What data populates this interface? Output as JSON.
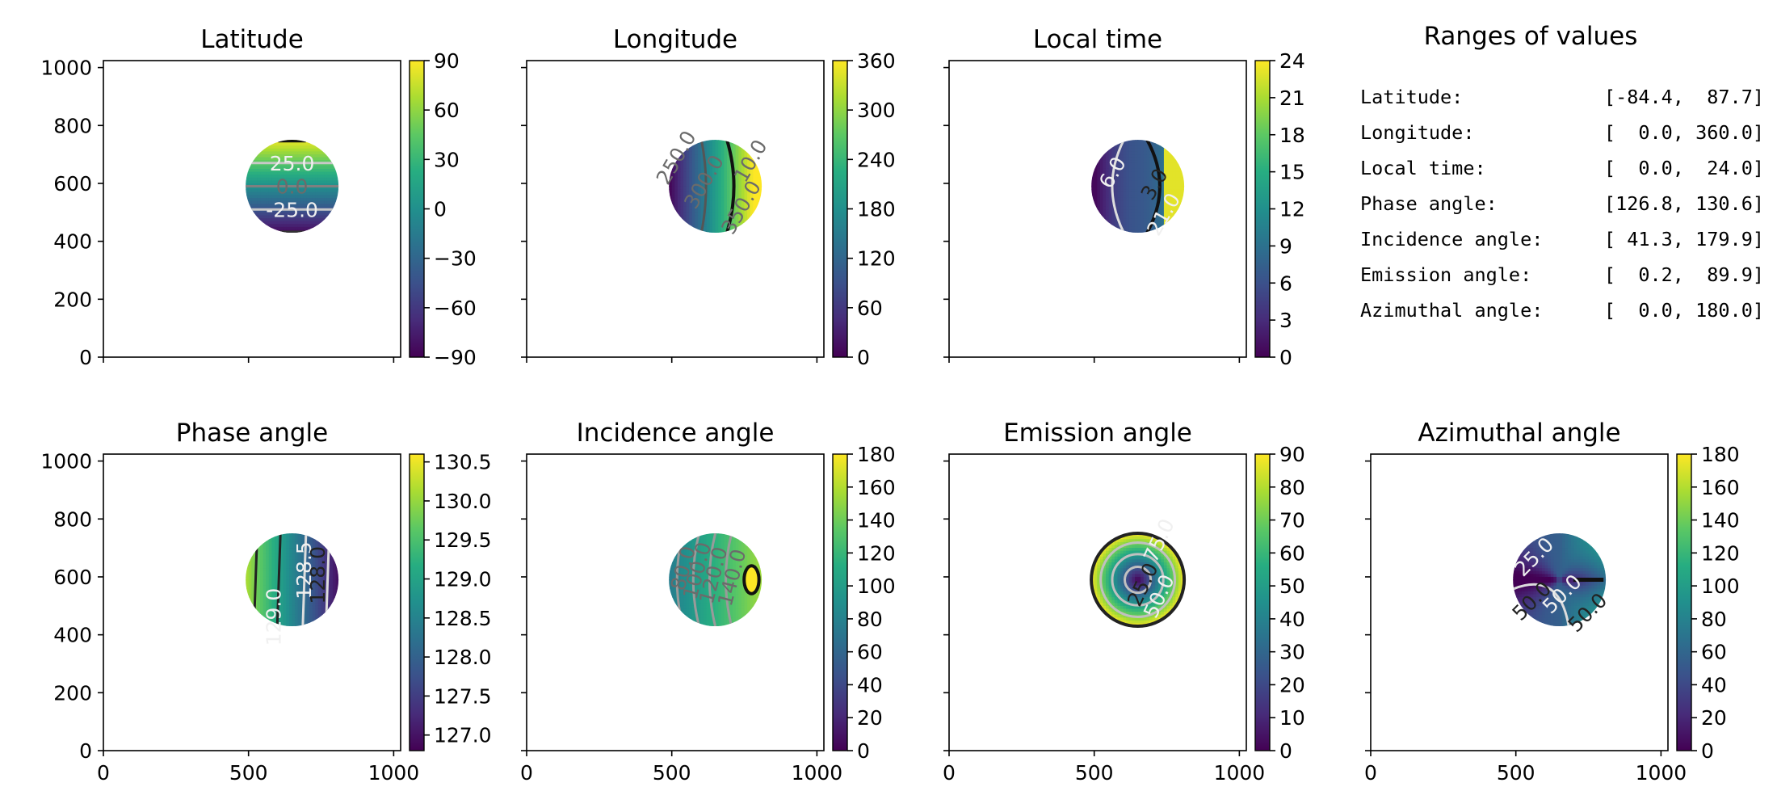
{
  "chart_data": [
    {
      "type": "heatmap",
      "title": "Latitude",
      "xlim": [
        0,
        1024
      ],
      "ylim": [
        0,
        1024
      ],
      "xticks": [],
      "yticks": [
        "0",
        "200",
        "400",
        "600",
        "800",
        "1000"
      ],
      "disk": {
        "cx": 650,
        "cy": 590,
        "r": 160
      },
      "field": "latitude",
      "colorbar": {
        "min": -90,
        "max": 90,
        "ticks": [
          "90",
          "60",
          "30",
          "0",
          "−30",
          "−60",
          "−90"
        ]
      },
      "contour_labels": [
        "25.0",
        "0.0",
        "-25.0"
      ]
    },
    {
      "type": "heatmap",
      "title": "Longitude",
      "xlim": [
        0,
        1024
      ],
      "ylim": [
        0,
        1024
      ],
      "xticks": [],
      "yticks": [],
      "disk": {
        "cx": 650,
        "cy": 590,
        "r": 160
      },
      "field": "longitude",
      "colorbar": {
        "min": 0,
        "max": 360,
        "ticks": [
          "360",
          "300",
          "240",
          "180",
          "120",
          "60",
          "0"
        ]
      },
      "contour_labels": [
        "250.0",
        "300.0",
        "350.0",
        "10.0"
      ]
    },
    {
      "type": "heatmap",
      "title": "Local time",
      "xlim": [
        0,
        1024
      ],
      "ylim": [
        0,
        1024
      ],
      "xticks": [],
      "yticks": [],
      "disk": {
        "cx": 650,
        "cy": 590,
        "r": 160
      },
      "field": "localtime",
      "colorbar": {
        "min": 0,
        "max": 24,
        "ticks": [
          "24",
          "21",
          "18",
          "15",
          "12",
          "9",
          "6",
          "3",
          "0"
        ]
      },
      "contour_labels": [
        "6.0",
        "3.0",
        "21.0"
      ]
    },
    {
      "type": "heatmap",
      "title": "Phase angle",
      "xlim": [
        0,
        1024
      ],
      "ylim": [
        0,
        1024
      ],
      "xticks": [
        "0",
        "500",
        "1000"
      ],
      "yticks": [
        "0",
        "200",
        "400",
        "600",
        "800",
        "1000"
      ],
      "disk": {
        "cx": 650,
        "cy": 590,
        "r": 160
      },
      "field": "phase",
      "colorbar": {
        "min": 126.8,
        "max": 130.6,
        "ticks": [
          "130.5",
          "130.0",
          "129.5",
          "129.0",
          "128.5",
          "128.0",
          "127.5",
          "127.0"
        ],
        "tick_values": [
          130.5,
          130.0,
          129.5,
          129.0,
          128.5,
          128.0,
          127.5,
          127.0
        ]
      },
      "contour_labels": [
        "128.5",
        "128.0",
        "129.0"
      ]
    },
    {
      "type": "heatmap",
      "title": "Incidence angle",
      "xlim": [
        0,
        1024
      ],
      "ylim": [
        0,
        1024
      ],
      "xticks": [
        "0",
        "500",
        "1000"
      ],
      "yticks": [],
      "disk": {
        "cx": 650,
        "cy": 590,
        "r": 160
      },
      "field": "incidence",
      "colorbar": {
        "min": 0,
        "max": 180,
        "ticks": [
          "180",
          "160",
          "140",
          "120",
          "100",
          "80",
          "60",
          "40",
          "20",
          "0"
        ]
      },
      "contour_labels": [
        "80.0",
        "100.0",
        "120.0",
        "140.0"
      ]
    },
    {
      "type": "heatmap",
      "title": "Emission angle",
      "xlim": [
        0,
        1024
      ],
      "ylim": [
        0,
        1024
      ],
      "xticks": [
        "0",
        "500",
        "1000"
      ],
      "yticks": [],
      "disk": {
        "cx": 650,
        "cy": 590,
        "r": 160
      },
      "field": "emission",
      "colorbar": {
        "min": 0,
        "max": 90,
        "ticks": [
          "90",
          "80",
          "70",
          "60",
          "50",
          "40",
          "30",
          "20",
          "10",
          "0"
        ]
      },
      "contour_labels": [
        "75.0",
        "25.0",
        "50.0"
      ]
    },
    {
      "type": "heatmap",
      "title": "Azimuthal angle",
      "xlim": [
        0,
        1024
      ],
      "ylim": [
        0,
        1024
      ],
      "xticks": [
        "0",
        "500",
        "1000"
      ],
      "yticks": [],
      "disk": {
        "cx": 650,
        "cy": 590,
        "r": 160
      },
      "field": "azimuth",
      "colorbar": {
        "min": 0,
        "max": 180,
        "ticks": [
          "180",
          "160",
          "140",
          "120",
          "100",
          "80",
          "60",
          "40",
          "20",
          "0"
        ]
      },
      "contour_labels": [
        "25.0",
        "50.0",
        "50.0",
        "50.0"
      ]
    }
  ],
  "ranges": {
    "title": "Ranges of values",
    "rows": [
      {
        "label": "Latitude:",
        "value": "[-84.4,  87.7]"
      },
      {
        "label": "Longitude:",
        "value": "[  0.0, 360.0]"
      },
      {
        "label": "Local time:",
        "value": "[  0.0,  24.0]"
      },
      {
        "label": "Phase angle:",
        "value": "[126.8, 130.6]"
      },
      {
        "label": "Incidence angle:",
        "value": "[ 41.3, 179.9]"
      },
      {
        "label": "Emission angle:",
        "value": "[  0.2,  89.9]"
      },
      {
        "label": "Azimuthal angle:",
        "value": "[  0.0, 180.0]"
      }
    ]
  }
}
